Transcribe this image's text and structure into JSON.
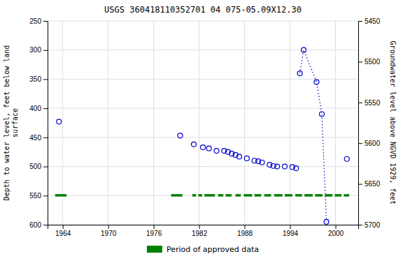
{
  "chart_data": {
    "type": "scatter",
    "title": "USGS 360418110352701 04 075-05.09X12.30",
    "ylabel": "Depth to water level, feet below land\nsurface",
    "y2label": "Groundwater level above NGVD 1929, feet",
    "xlim": [
      1962,
      2003
    ],
    "xticks": [
      1964,
      1970,
      1976,
      1982,
      1988,
      1994,
      2000
    ],
    "ylim": [
      600,
      250
    ],
    "yticks": [
      250,
      300,
      350,
      400,
      450,
      500,
      550,
      600
    ],
    "y2lim": [
      5700,
      5450
    ],
    "y2ticks": [
      5700,
      5650,
      5600,
      5550,
      5500,
      5450
    ],
    "grid": true,
    "legend": "bottom",
    "series": [
      {
        "type": "scatter",
        "color": "#0000CC",
        "marker": "circle",
        "x": [
          1963.5,
          1979.5,
          1981.3,
          1982.5,
          1983.3,
          1984.3,
          1985.3,
          1985.8,
          1986.3,
          1986.8,
          1987.3,
          1988.3,
          1989.3,
          1989.8,
          1990.3,
          1991.3,
          1991.8,
          1992.3,
          1993.3,
          1994.3,
          1994.8
        ],
        "values": [
          423,
          447,
          462,
          467,
          469,
          473,
          473,
          475,
          478,
          480,
          483,
          486,
          490,
          491,
          493,
          497,
          499,
          500,
          500,
          501,
          503
        ]
      },
      {
        "type": "line",
        "color": "#0000CC",
        "marker": "circle",
        "line_style": "dotted",
        "x": [
          1995.3,
          1995.8,
          1997.5,
          1998.2,
          1998.8
        ],
        "values": [
          340,
          300,
          355,
          410,
          595
        ]
      },
      {
        "type": "scatter",
        "color": "#0000CC",
        "marker": "circle",
        "x": [
          2001.5
        ],
        "values": [
          487
        ]
      },
      {
        "type": "segments",
        "name": "Period of approved data",
        "color": "#008000",
        "x": [
          1963.0,
          1978.3,
          1981.1,
          1981.9,
          1982.7,
          1984.5,
          1985.5,
          1986.8,
          1987.9,
          1989.3,
          1990.6,
          1991.9,
          1993.3,
          1994.7,
          1995.9,
          1997.3,
          1998.6,
          1999.9,
          2001.1
        ],
        "x_end": [
          1964.5,
          1979.8,
          1981.6,
          1982.4,
          1984.1,
          1985.2,
          1986.3,
          1987.5,
          1989.0,
          1990.2,
          1991.5,
          1993.0,
          1994.3,
          1995.6,
          1997.0,
          1998.3,
          1999.6,
          2000.8,
          2001.8
        ],
        "values": [
          549.5,
          549.5,
          549.5,
          549.5,
          549.5,
          549.5,
          549.5,
          549.5,
          549.5,
          549.5,
          549.5,
          549.5,
          549.5,
          549.5,
          549.5,
          549.5,
          549.5,
          549.5,
          549.5
        ]
      }
    ]
  }
}
